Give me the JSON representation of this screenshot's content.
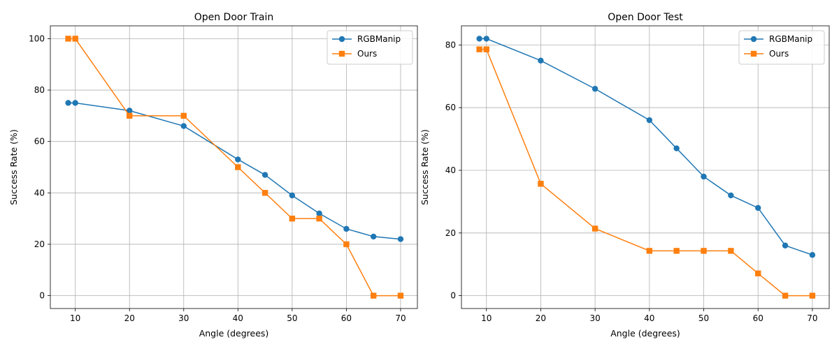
{
  "chart_data": [
    {
      "type": "line",
      "title": "Open Door Train",
      "xlabel": "Angle (degrees)",
      "ylabel": "Success Rate (%)",
      "xlim": [
        5.4,
        73.1
      ],
      "ylim": [
        -5,
        105
      ],
      "xticks": [
        10,
        20,
        30,
        40,
        50,
        60,
        70
      ],
      "yticks": [
        0,
        20,
        40,
        60,
        80,
        100
      ],
      "grid": true,
      "legend": "top-right",
      "series": [
        {
          "name": "RGBManip",
          "color": "#1f77b4",
          "marker": "circle",
          "x": [
            8.7,
            10,
            20,
            30,
            40,
            45,
            50,
            55,
            60,
            65,
            70
          ],
          "y": [
            75,
            75,
            72,
            66,
            53,
            47,
            39,
            32,
            26,
            23,
            22
          ]
        },
        {
          "name": "Ours",
          "color": "#ff7f0e",
          "marker": "square",
          "x": [
            8.7,
            10,
            20,
            30,
            40,
            45,
            50,
            55,
            60,
            65,
            70
          ],
          "y": [
            100,
            100,
            70,
            70,
            50,
            40,
            30,
            30,
            20,
            0,
            0
          ]
        }
      ]
    },
    {
      "type": "line",
      "title": "Open Door Test",
      "xlabel": "Angle (degrees)",
      "ylabel": "Success Rate (%)",
      "xlim": [
        5.4,
        73.1
      ],
      "ylim": [
        -4.1,
        86.1
      ],
      "xticks": [
        10,
        20,
        30,
        40,
        50,
        60,
        70
      ],
      "yticks": [
        0,
        20,
        40,
        60,
        80
      ],
      "grid": true,
      "legend": "top-right",
      "series": [
        {
          "name": "RGBManip",
          "color": "#1f77b4",
          "marker": "circle",
          "x": [
            8.7,
            10,
            20,
            30,
            40,
            45,
            50,
            55,
            60,
            65,
            70
          ],
          "y": [
            82,
            82,
            75,
            66,
            56,
            47,
            38,
            32,
            28,
            16,
            13
          ]
        },
        {
          "name": "Ours",
          "color": "#ff7f0e",
          "marker": "square",
          "x": [
            8.7,
            10,
            20,
            30,
            40,
            45,
            50,
            55,
            60,
            65,
            70
          ],
          "y": [
            78.6,
            78.6,
            35.7,
            21.4,
            14.3,
            14.3,
            14.3,
            14.3,
            7.1,
            0,
            0
          ]
        }
      ]
    }
  ]
}
